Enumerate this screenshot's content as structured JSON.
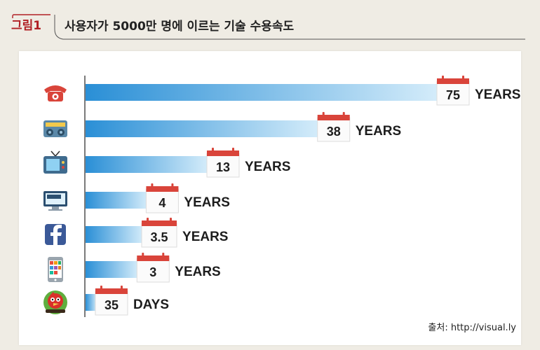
{
  "figure": {
    "tag": "그림1",
    "title": "사용자가 5000만 명에 이르는 기술 수용속도",
    "source": "출처: http://visual.ly"
  },
  "colors": {
    "bar_start": "#2a8fd6",
    "bar_end": "#d4ecfa",
    "calendar_red": "#d9443a",
    "accent": "#b01f24"
  },
  "chart_data": {
    "type": "bar",
    "orientation": "horizontal",
    "title": "",
    "xlabel": "",
    "ylabel": "",
    "categories": [
      "telephone-icon",
      "radio-icon",
      "tv-icon",
      "internet-icon",
      "facebook-icon",
      "smartphone-apps-icon",
      "angry-birds-icon"
    ],
    "values_years": [
      75,
      38,
      13,
      4,
      3.5,
      3,
      0.0959
    ],
    "labels": [
      {
        "number": "75",
        "unit": "YEARS"
      },
      {
        "number": "38",
        "unit": "YEARS"
      },
      {
        "number": "13",
        "unit": "YEARS"
      },
      {
        "number": "4",
        "unit": "YEARS"
      },
      {
        "number": "3.5",
        "unit": "YEARS"
      },
      {
        "number": "3",
        "unit": "YEARS"
      },
      {
        "number": "35",
        "unit": "DAYS"
      }
    ],
    "grid": false,
    "legend": "none"
  }
}
